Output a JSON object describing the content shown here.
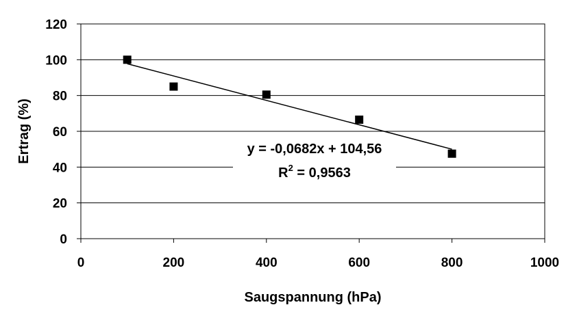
{
  "chart_data": {
    "type": "scatter",
    "title": "",
    "xlabel": "Saugspannung (hPa)",
    "ylabel": "Ertrag (%)",
    "xlim": [
      0,
      1000
    ],
    "ylim": [
      0,
      120
    ],
    "xticks": [
      0,
      200,
      400,
      600,
      800,
      1000
    ],
    "yticks": [
      0,
      20,
      40,
      60,
      80,
      100,
      120
    ],
    "grid": "horizontal",
    "series": [
      {
        "points": [
          {
            "x": 100,
            "y": 100
          },
          {
            "x": 200,
            "y": 85
          },
          {
            "x": 400,
            "y": 80.5
          },
          {
            "x": 600,
            "y": 66.5
          },
          {
            "x": 800,
            "y": 47.5
          }
        ],
        "marker": "square",
        "color": "#000000"
      }
    ],
    "trendline": {
      "type": "linear",
      "slope": -0.0682,
      "intercept": 104.56,
      "x_range": [
        100,
        800
      ],
      "equation": "y = -0,0682x + 104,56",
      "r2_prefix": "R",
      "r2_exponent": "2",
      "r2_value": " = 0,9563"
    }
  }
}
